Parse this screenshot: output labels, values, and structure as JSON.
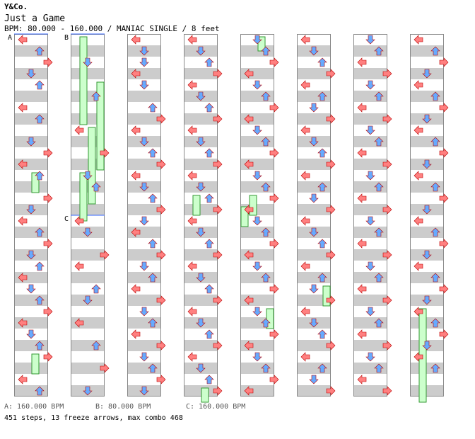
{
  "header": {
    "artist": "Y&Co.",
    "title": "Just a Game",
    "info": "BPM: 80.000 - 160.000 / MANIAC SINGLE / 8 feet"
  },
  "bpm_labels": [
    {
      "id": "A",
      "text": "A: 160.000 BPM"
    },
    {
      "id": "B",
      "text": "B: 80.000 BPM"
    },
    {
      "id": "C",
      "text": "C: 160.000 BPM"
    }
  ],
  "marker_letters": {
    "a": "A",
    "b": "B",
    "c": "C"
  },
  "summary": "451 steps, 13 freeze arrows, max combo 468",
  "colors": {
    "stripe": "#cccccc",
    "left_right_arrow": "#ff8080",
    "up_down_arrow": "#66aaff",
    "mine_pink": "#ffa0ff",
    "freeze": "#ccffcc",
    "freeze_border": "#339933",
    "bpm_line": "#3366ff"
  },
  "chart_data": {
    "type": "step-chart",
    "columns": 8,
    "lanes": [
      "left",
      "down",
      "up",
      "right"
    ],
    "notes": [
      [
        [
          0,
          0
        ],
        [
          1,
          2
        ],
        [
          2,
          3
        ],
        [
          3,
          1
        ],
        [
          4,
          2
        ],
        [
          6,
          0
        ],
        [
          7,
          2
        ],
        [
          9,
          1
        ],
        [
          10,
          3
        ],
        [
          11,
          0
        ],
        [
          12,
          2
        ],
        [
          14,
          3
        ],
        [
          15,
          1
        ],
        [
          16,
          0
        ],
        [
          17,
          2
        ],
        [
          18,
          3
        ],
        [
          19,
          1
        ],
        [
          20,
          2
        ],
        [
          21,
          0
        ],
        [
          22,
          1
        ],
        [
          23,
          2
        ],
        [
          24,
          3
        ],
        [
          25,
          0
        ],
        [
          26,
          1
        ],
        [
          27,
          2
        ],
        [
          28,
          3
        ],
        [
          30,
          0
        ],
        [
          31,
          2
        ]
      ],
      [
        [
          2,
          1
        ],
        [
          5,
          2
        ],
        [
          8,
          0
        ],
        [
          10,
          3
        ],
        [
          12,
          1
        ],
        [
          13,
          2
        ],
        [
          16,
          0
        ],
        [
          17,
          1
        ],
        [
          19,
          3
        ],
        [
          20,
          0
        ],
        [
          22,
          2
        ],
        [
          23,
          1
        ],
        [
          25,
          0
        ],
        [
          27,
          2
        ],
        [
          29,
          3
        ],
        [
          31,
          1
        ]
      ],
      [
        [
          0,
          0
        ],
        [
          1,
          1
        ],
        [
          2,
          1
        ],
        [
          3,
          0
        ],
        [
          4,
          1
        ],
        [
          6,
          2
        ],
        [
          7,
          3
        ],
        [
          8,
          0
        ],
        [
          9,
          1
        ],
        [
          10,
          2
        ],
        [
          11,
          3
        ],
        [
          12,
          0
        ],
        [
          13,
          1
        ],
        [
          14,
          2
        ],
        [
          15,
          3
        ],
        [
          16,
          1
        ],
        [
          17,
          0
        ],
        [
          18,
          2
        ],
        [
          19,
          3
        ],
        [
          20,
          1
        ],
        [
          21,
          2
        ],
        [
          22,
          0
        ],
        [
          23,
          3
        ],
        [
          24,
          1
        ],
        [
          25,
          2
        ],
        [
          26,
          0
        ],
        [
          27,
          3
        ],
        [
          28,
          1
        ],
        [
          29,
          2
        ],
        [
          30,
          3
        ],
        [
          31,
          1
        ]
      ],
      [
        [
          0,
          0
        ],
        [
          1,
          1
        ],
        [
          2,
          2
        ],
        [
          3,
          3
        ],
        [
          4,
          0
        ],
        [
          5,
          1
        ],
        [
          6,
          2
        ],
        [
          7,
          3
        ],
        [
          8,
          0
        ],
        [
          9,
          1
        ],
        [
          10,
          2
        ],
        [
          11,
          3
        ],
        [
          12,
          0
        ],
        [
          13,
          1
        ],
        [
          14,
          2
        ],
        [
          15,
          3
        ],
        [
          16,
          0
        ],
        [
          17,
          1
        ],
        [
          18,
          2
        ],
        [
          19,
          3
        ],
        [
          20,
          0
        ],
        [
          21,
          1
        ],
        [
          22,
          2
        ],
        [
          23,
          3
        ],
        [
          24,
          0
        ],
        [
          25,
          1
        ],
        [
          26,
          2
        ],
        [
          27,
          3
        ],
        [
          28,
          0
        ],
        [
          29,
          1
        ],
        [
          30,
          2
        ],
        [
          31,
          3
        ]
      ],
      [
        [
          0,
          1
        ],
        [
          1,
          2
        ],
        [
          2,
          3
        ],
        [
          3,
          0
        ],
        [
          4,
          1
        ],
        [
          5,
          2
        ],
        [
          6,
          3
        ],
        [
          7,
          0
        ],
        [
          8,
          1
        ],
        [
          9,
          2
        ],
        [
          10,
          3
        ],
        [
          11,
          0
        ],
        [
          12,
          1
        ],
        [
          13,
          2
        ],
        [
          14,
          3
        ],
        [
          15,
          0
        ],
        [
          16,
          1
        ],
        [
          17,
          2
        ],
        [
          18,
          3
        ],
        [
          19,
          0
        ],
        [
          20,
          1
        ],
        [
          21,
          2
        ],
        [
          22,
          3
        ],
        [
          23,
          0
        ],
        [
          24,
          1
        ],
        [
          25,
          2
        ],
        [
          26,
          3
        ],
        [
          27,
          0
        ],
        [
          28,
          1
        ],
        [
          29,
          2
        ],
        [
          30,
          3
        ],
        [
          31,
          0
        ]
      ],
      [
        [
          0,
          0
        ],
        [
          1,
          1
        ],
        [
          2,
          2
        ],
        [
          3,
          3
        ],
        [
          4,
          0
        ],
        [
          5,
          2
        ],
        [
          6,
          1
        ],
        [
          7,
          3
        ],
        [
          8,
          0
        ],
        [
          9,
          1
        ],
        [
          10,
          2
        ],
        [
          11,
          3
        ],
        [
          12,
          0
        ],
        [
          13,
          2
        ],
        [
          14,
          1
        ],
        [
          15,
          3
        ],
        [
          16,
          0
        ],
        [
          17,
          1
        ],
        [
          18,
          2
        ],
        [
          19,
          3
        ],
        [
          20,
          0
        ],
        [
          21,
          2
        ],
        [
          22,
          1
        ],
        [
          23,
          3
        ],
        [
          24,
          0
        ],
        [
          25,
          1
        ],
        [
          26,
          2
        ],
        [
          27,
          3
        ],
        [
          28,
          0
        ],
        [
          29,
          2
        ],
        [
          30,
          1
        ],
        [
          31,
          3
        ]
      ],
      [
        [
          0,
          1
        ],
        [
          1,
          2
        ],
        [
          2,
          0
        ],
        [
          3,
          3
        ],
        [
          4,
          1
        ],
        [
          5,
          2
        ],
        [
          6,
          0
        ],
        [
          7,
          3
        ],
        [
          8,
          1
        ],
        [
          9,
          2
        ],
        [
          10,
          0
        ],
        [
          11,
          3
        ],
        [
          12,
          1
        ],
        [
          13,
          2
        ],
        [
          14,
          0
        ],
        [
          15,
          3
        ],
        [
          16,
          1
        ],
        [
          17,
          2
        ],
        [
          18,
          0
        ],
        [
          19,
          3
        ],
        [
          20,
          1
        ],
        [
          21,
          2
        ],
        [
          22,
          0
        ],
        [
          23,
          3
        ],
        [
          24,
          1
        ],
        [
          25,
          2
        ],
        [
          26,
          0
        ],
        [
          27,
          3
        ],
        [
          28,
          1
        ],
        [
          29,
          2
        ],
        [
          30,
          0
        ],
        [
          31,
          3
        ]
      ],
      [
        [
          0,
          0
        ],
        [
          1,
          2
        ],
        [
          2,
          3
        ],
        [
          3,
          1
        ],
        [
          4,
          0
        ],
        [
          5,
          2
        ],
        [
          6,
          3
        ],
        [
          7,
          1
        ],
        [
          8,
          0
        ],
        [
          9,
          2
        ],
        [
          10,
          3
        ],
        [
          11,
          1
        ],
        [
          12,
          0
        ],
        [
          13,
          2
        ],
        [
          14,
          3
        ],
        [
          15,
          1
        ],
        [
          16,
          0
        ],
        [
          17,
          2
        ],
        [
          18,
          3
        ],
        [
          19,
          1
        ],
        [
          20,
          0
        ],
        [
          21,
          2
        ],
        [
          22,
          3
        ],
        [
          23,
          1
        ],
        [
          24,
          0
        ],
        [
          25,
          2
        ],
        [
          26,
          3
        ],
        [
          27,
          1
        ],
        [
          28,
          0
        ],
        [
          29,
          2
        ]
      ]
    ],
    "freezes": [
      {
        "col": 1,
        "lane": 1,
        "start": 0,
        "end": 7.5
      },
      {
        "col": 1,
        "lane": 3,
        "start": 4,
        "end": 11.5
      },
      {
        "col": 1,
        "lane": 2,
        "start": 8,
        "end": 14.5
      },
      {
        "col": 1,
        "lane": 1,
        "start": 12,
        "end": 16
      },
      {
        "col": 0,
        "lane": 2,
        "start": 12,
        "end": 13.5
      },
      {
        "col": 0,
        "lane": 2,
        "start": 28,
        "end": 29.5
      },
      {
        "col": 3,
        "lane": 1,
        "start": 14,
        "end": 15.5
      },
      {
        "col": 3,
        "lane": 2,
        "start": 31,
        "end": 32
      },
      {
        "col": 4,
        "lane": 0,
        "start": 15,
        "end": 16.5
      },
      {
        "col": 4,
        "lane": 1,
        "start": 14,
        "end": 15.5
      },
      {
        "col": 4,
        "lane": 2,
        "start": 0,
        "end": 1
      },
      {
        "col": 4,
        "lane": 3,
        "start": 24,
        "end": 25.5
      },
      {
        "col": 5,
        "lane": 3,
        "start": 22,
        "end": 23.5
      },
      {
        "col": 7,
        "lane": 1,
        "start": 24,
        "end": 32
      }
    ]
  }
}
